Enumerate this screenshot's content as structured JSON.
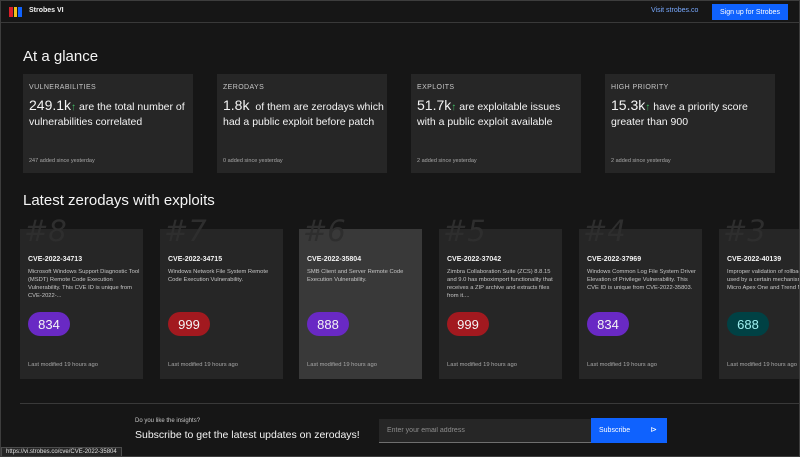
{
  "header": {
    "brand": "Strobes VI",
    "logo_colors": [
      "#da1e28",
      "#f1c21b",
      "#0f62fe"
    ],
    "visit_link": "Visit strobes.co",
    "signup_label": "Sign up for Strobes"
  },
  "glance": {
    "title": "At a glance",
    "cards": [
      {
        "label": "VULNERABILITIES",
        "value": "249.1k",
        "arrow": "↑",
        "text": "are the total number of vulnerabilities correlated",
        "since": "247 added since yesterday"
      },
      {
        "label": "ZERODAYS",
        "value": "1.8k",
        "arrow": "",
        "text": "of them are zerodays which had a public exploit before patch",
        "since": "0 added since yesterday"
      },
      {
        "label": "EXPLOITS",
        "value": "51.7k",
        "arrow": "↑",
        "text": "are exploitable issues with a public exploit available",
        "since": "2 added since yesterday"
      },
      {
        "label": "HIGH PRIORITY",
        "value": "15.3k",
        "arrow": "↑",
        "text": "have a priority score greater than 900",
        "since": "2 added since yesterday"
      }
    ]
  },
  "zerodays": {
    "title": "Latest zerodays with exploits",
    "cards": [
      {
        "rank": "#8",
        "cve": "CVE-2022-34713",
        "desc": "Microsoft Windows Support Diagnostic Tool (MSDT) Remote Code Execution Vulnerability. This CVE ID is unique from CVE-2022-...",
        "score": "834",
        "score_color": "#6929c4",
        "score_text_color": "#f4f4f4",
        "modified": "Last modified 19 hours ago"
      },
      {
        "rank": "#7",
        "cve": "CVE-2022-34715",
        "desc": "Windows Network File System Remote Code Execution Vulnerability.",
        "score": "999",
        "score_color": "#a2191f",
        "score_text_color": "#f4f4f4",
        "modified": "Last modified 19 hours ago"
      },
      {
        "rank": "#6",
        "cve": "CVE-2022-35804",
        "desc": "SMB Client and Server Remote Code Execution Vulnerability.",
        "score": "888",
        "score_color": "#6929c4",
        "score_text_color": "#f4f4f4",
        "modified": "Last modified 19 hours ago"
      },
      {
        "rank": "#5",
        "cve": "CVE-2022-37042",
        "desc": "Zimbra Collaboration Suite (ZCS) 8.8.15 and 9.0 has mboximport functionality that receives a ZIP archive and extracts files from it....",
        "score": "999",
        "score_color": "#a2191f",
        "score_text_color": "#f4f4f4",
        "modified": "Last modified 19 hours ago"
      },
      {
        "rank": "#4",
        "cve": "CVE-2022-37969",
        "desc": "Windows Common Log File System Driver Elevation of Privilege Vulnerability. This CVE ID is unique from CVE-2022-35803.",
        "score": "834",
        "score_color": "#6929c4",
        "score_text_color": "#f4f4f4",
        "modified": "Last modified 19 hours ago"
      },
      {
        "rank": "#3",
        "cve": "CVE-2022-40139",
        "desc": "Improper validation of rollback components used by a certain mechanism in Trend Micro Apex One and Trend Micro...",
        "score": "688",
        "score_color": "#004144",
        "score_text_color": "#9ef0f0",
        "modified": "Last modified 19 hours ago"
      }
    ]
  },
  "subscribe": {
    "question": "Do you like the insights?",
    "headline": "Subscribe to get the latest updates on zerodays!",
    "email_placeholder": "Enter your email address",
    "button_label": "Subscribe",
    "button_icon": "send-icon"
  },
  "statusbar": {
    "url": "https://vi.strobes.co/cve/CVE-2022-35804"
  }
}
